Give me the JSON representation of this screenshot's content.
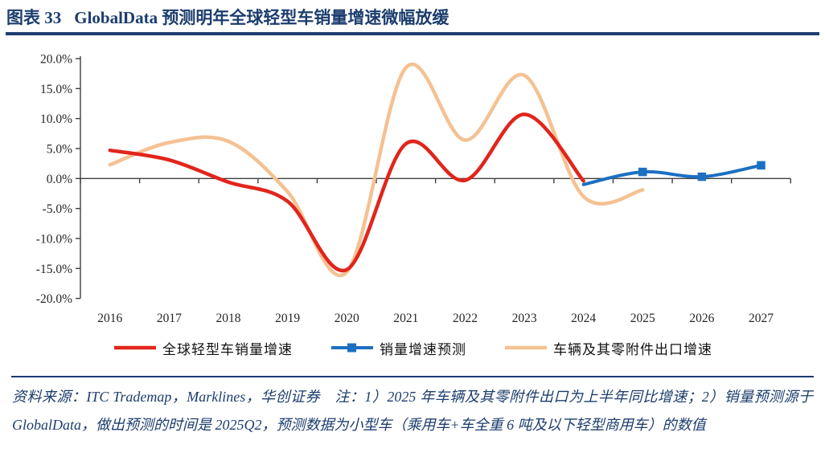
{
  "header": {
    "label": "图表 33",
    "title": "GlobalData 预测明年全球轻型车销量增速微幅放缓"
  },
  "chart_data": {
    "type": "line",
    "smooth": true,
    "grid": false,
    "unit": "%",
    "x": [
      2016,
      2017,
      2018,
      2019,
      2020,
      2021,
      2022,
      2023,
      2024,
      2025,
      2026,
      2027
    ],
    "ylim": [
      -20,
      20
    ],
    "ytick_step": 5,
    "ytick_labels": [
      "20.0%",
      "15.0%",
      "10.0%",
      "5.0%",
      "0.0%",
      "-5.0%",
      "-10.0%",
      "-15.0%",
      "-20.0%"
    ],
    "legend_position": "bottom",
    "series": [
      {
        "name": "全球轻型车销量增速",
        "color": "#e1251c",
        "values": [
          4.7,
          3.1,
          -0.6,
          -3.8,
          -15.2,
          5.8,
          -0.3,
          10.7,
          -0.4,
          null,
          null,
          null
        ]
      },
      {
        "name": "销量增速预测",
        "color": "#1c70c2",
        "marker": "square",
        "marker_years": [
          2025,
          2026,
          2027
        ],
        "values": [
          null,
          null,
          null,
          null,
          null,
          null,
          null,
          null,
          -1.0,
          1.1,
          0.3,
          2.2
        ]
      },
      {
        "name": "车辆及其零附件出口增速",
        "color": "#f5c193",
        "values": [
          2.3,
          6.0,
          6.2,
          -2.2,
          -15.6,
          18.5,
          6.4,
          17.2,
          -3.0,
          -1.9,
          null,
          null
        ]
      }
    ]
  },
  "footer": {
    "note": "资料来源：ITC Trademap，Marklines，华创证券　注：1）2025 年车辆及其零附件出口为上半年同比增速；2）销量预测源于 GlobalData，做出预测的时间是 2025Q2，预测数据为小型车（乘用车+车全重 6 吨及以下轻型商用车）的数值"
  },
  "colors": {
    "accent_navy": "#1c3d6e",
    "axis": "#3f3f3f",
    "tick_text": "#262626"
  }
}
